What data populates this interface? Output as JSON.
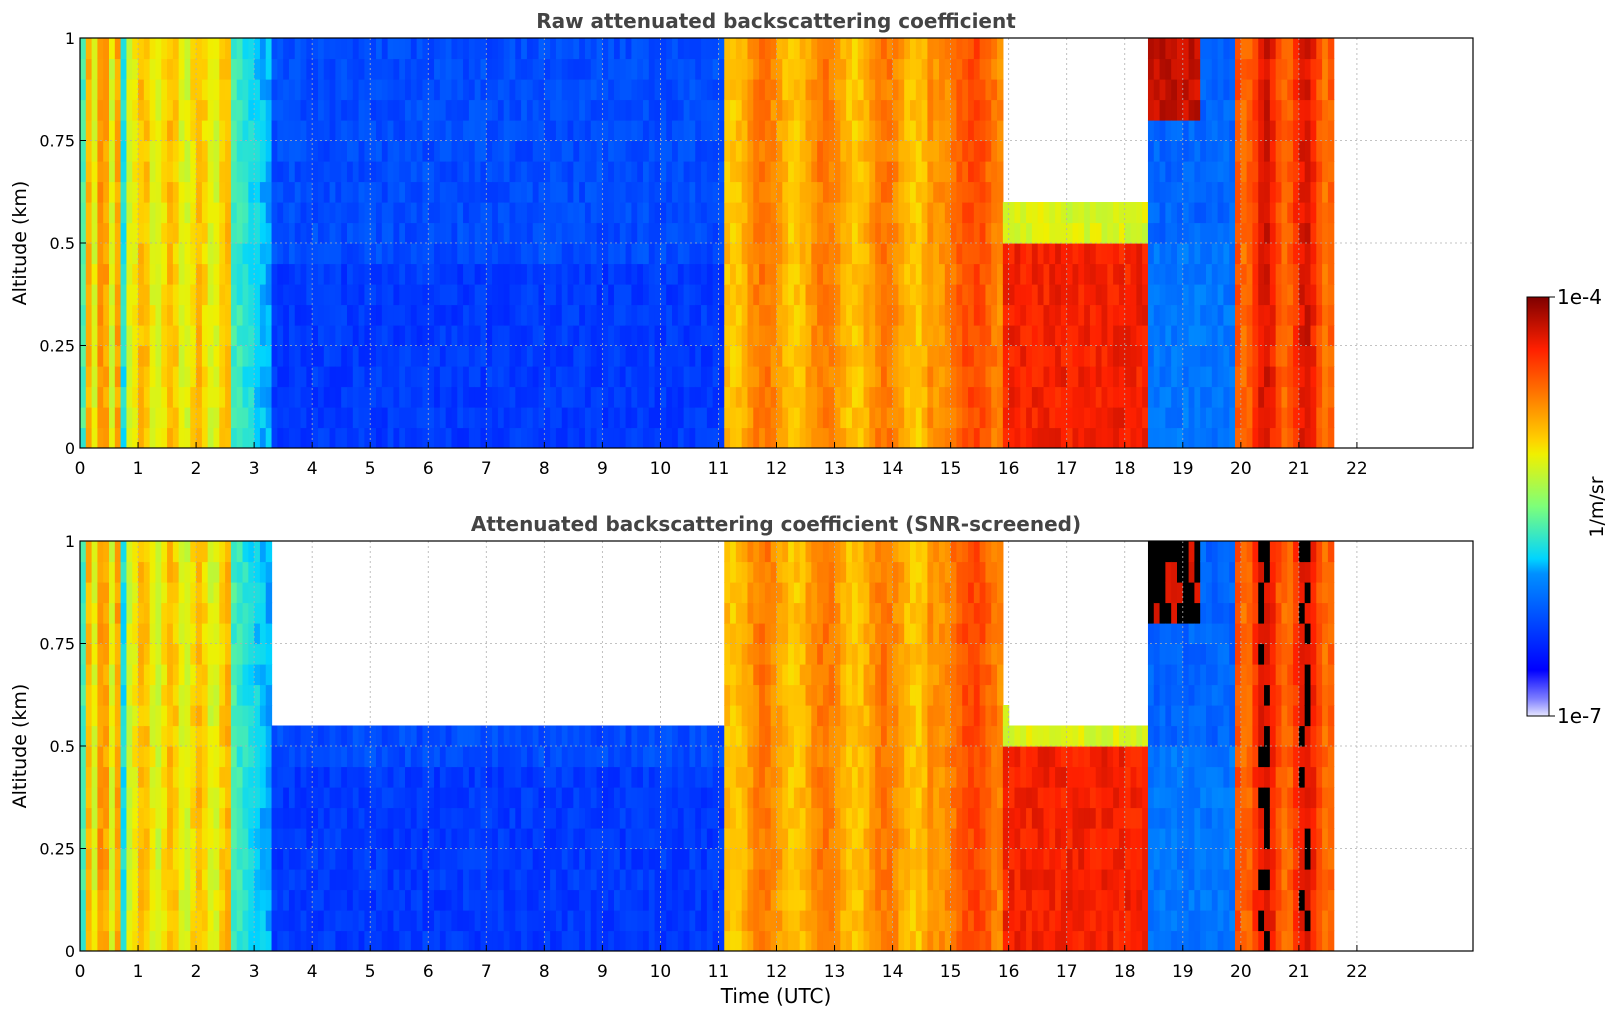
{
  "chart_data": [
    {
      "type": "heatmap",
      "title": "Raw attenuated backscattering coefficient",
      "xlabel": "",
      "ylabel": "Altitude (km)",
      "xlim": [
        0,
        24
      ],
      "ylim": [
        0,
        1
      ],
      "x_ticks": [
        "0",
        "1",
        "2",
        "3",
        "4",
        "5",
        "6",
        "7",
        "8",
        "9",
        "10",
        "11",
        "12",
        "13",
        "14",
        "15",
        "16",
        "17",
        "18",
        "19",
        "20",
        "21",
        "22"
      ],
      "y_ticks": [
        "0",
        "0.25",
        "0.5",
        "0.75",
        "1"
      ],
      "grid": true,
      "data_extent_hours": [
        0,
        21.6
      ],
      "color_scale": "log",
      "screened": false
    },
    {
      "type": "heatmap",
      "title": "Attenuated backscattering coefficient (SNR-screened)",
      "xlabel": "Time (UTC)",
      "ylabel": "Altitude (km)",
      "xlim": [
        0,
        24
      ],
      "ylim": [
        0,
        1
      ],
      "x_ticks": [
        "0",
        "1",
        "2",
        "3",
        "4",
        "5",
        "6",
        "7",
        "8",
        "9",
        "10",
        "11",
        "12",
        "13",
        "14",
        "15",
        "16",
        "17",
        "18",
        "19",
        "20",
        "21",
        "22"
      ],
      "y_ticks": [
        "0",
        "0.25",
        "0.5",
        "0.75",
        "1"
      ],
      "grid": true,
      "data_extent_hours": [
        0,
        21.6
      ],
      "color_scale": "log",
      "screened": true
    }
  ],
  "colorbar": {
    "label": "1/m/sr",
    "max_label": "1e-4",
    "min_label": "1e-7",
    "colormap": "jet"
  },
  "colors": {
    "axis": "#000000",
    "grid": "#b0b0b0",
    "title": "#444444",
    "masked": "#000000"
  }
}
